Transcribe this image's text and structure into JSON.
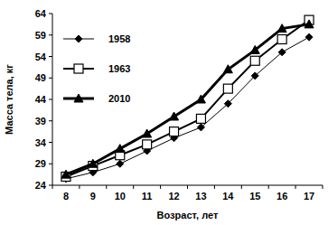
{
  "chart_data": {
    "type": "line",
    "x_label": "Возраст, лет",
    "y_label": "Масса тела, кг",
    "categories": [
      "8",
      "9",
      "10",
      "11",
      "12",
      "13",
      "14",
      "15",
      "16",
      "17"
    ],
    "series": [
      {
        "name": "1958",
        "color": "#000000",
        "marker": "diamond",
        "values": [
          25.5,
          27,
          29,
          32,
          35,
          37.5,
          43,
          49.5,
          55,
          58.5
        ]
      },
      {
        "name": "1963",
        "color": "#000000",
        "marker": "square-open",
        "values": [
          26,
          28.5,
          31,
          33.5,
          36.5,
          39.5,
          46.5,
          53,
          58,
          62.5
        ]
      },
      {
        "name": "2010",
        "color": "#000000",
        "marker": "triangle",
        "values": [
          26.5,
          29,
          32.5,
          36,
          40,
          44,
          51,
          55.5,
          60.5,
          61.5
        ]
      }
    ],
    "ylim": [
      24,
      64
    ],
    "yticks": [
      24,
      29,
      34,
      39,
      44,
      49,
      54,
      59,
      64
    ],
    "grid": false,
    "legend": "upper-left"
  }
}
